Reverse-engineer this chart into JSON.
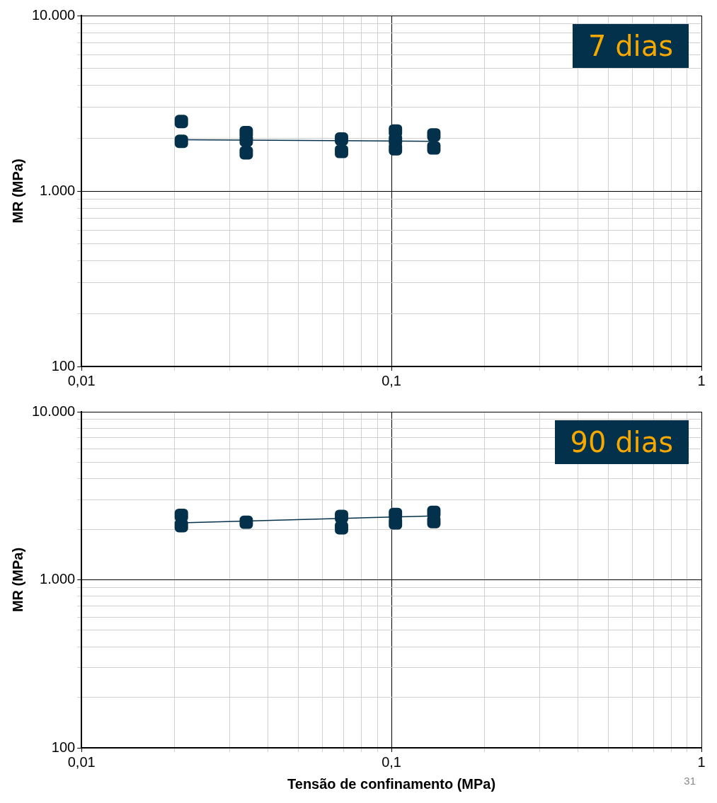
{
  "chart_data": [
    {
      "type": "scatter",
      "ylabel": "MR (MPa)",
      "log": "xy",
      "grid": true,
      "legend": false,
      "marker": "square",
      "xlim": [
        0.01,
        1
      ],
      "ylim": [
        100,
        10000
      ],
      "xticks": [
        {
          "value": 0.01,
          "label": "0,01"
        },
        {
          "value": 0.02,
          "label": null
        },
        {
          "value": 0.03,
          "label": null
        },
        {
          "value": 0.04,
          "label": null
        },
        {
          "value": 0.05,
          "label": null
        },
        {
          "value": 0.06,
          "label": null
        },
        {
          "value": 0.07,
          "label": null
        },
        {
          "value": 0.08,
          "label": null
        },
        {
          "value": 0.09,
          "label": null
        },
        {
          "value": 0.1,
          "label": "0,1"
        },
        {
          "value": 0.2,
          "label": null
        },
        {
          "value": 0.3,
          "label": null
        },
        {
          "value": 0.4,
          "label": null
        },
        {
          "value": 0.5,
          "label": null
        },
        {
          "value": 0.6,
          "label": null
        },
        {
          "value": 0.7,
          "label": null
        },
        {
          "value": 0.8,
          "label": null
        },
        {
          "value": 0.9,
          "label": null
        },
        1
      ],
      "yticks": [
        100,
        {
          "value": 200,
          "label": null
        },
        {
          "value": 300,
          "label": null
        },
        {
          "value": 400,
          "label": null
        },
        {
          "value": 500,
          "label": null
        },
        {
          "value": 600,
          "label": null
        },
        {
          "value": 700,
          "label": null
        },
        {
          "value": 800,
          "label": null
        },
        {
          "value": 900,
          "label": null
        },
        {
          "value": 1000,
          "label": "1.000"
        },
        {
          "value": 2000,
          "label": null
        },
        {
          "value": 3000,
          "label": null
        },
        {
          "value": 4000,
          "label": null
        },
        {
          "value": 5000,
          "label": null
        },
        {
          "value": 6000,
          "label": null
        },
        {
          "value": 7000,
          "label": null
        },
        {
          "value": 8000,
          "label": null
        },
        {
          "value": 9000,
          "label": null
        },
        {
          "value": 10000,
          "label": "10.000"
        }
      ],
      "series": [
        {
          "type": "scatter",
          "color": "#03304a",
          "x": [
            0.021,
            0.021,
            0.034,
            0.034,
            0.034,
            0.069,
            0.069,
            0.103,
            0.103,
            0.103,
            0.137,
            0.137
          ],
          "values": [
            2490,
            1920,
            2150,
            1950,
            1650,
            1980,
            1680,
            2200,
            1950,
            1740,
            2090,
            1760
          ]
        },
        {
          "type": "line",
          "marker": "none",
          "color": "#03304a",
          "x": [
            0.021,
            0.137
          ],
          "values": [
            1960,
            1920
          ]
        }
      ],
      "annotations": [
        "7 dias"
      ]
    },
    {
      "type": "scatter",
      "xlabel": "Tensão de confinamento (MPa)",
      "ylabel": "MR (MPa)",
      "log": "xy",
      "grid": true,
      "legend": false,
      "marker": "square",
      "xlim": [
        0.01,
        1
      ],
      "ylim": [
        100,
        10000
      ],
      "xticks": [
        {
          "value": 0.01,
          "label": "0,01"
        },
        {
          "value": 0.02,
          "label": null
        },
        {
          "value": 0.03,
          "label": null
        },
        {
          "value": 0.04,
          "label": null
        },
        {
          "value": 0.05,
          "label": null
        },
        {
          "value": 0.06,
          "label": null
        },
        {
          "value": 0.07,
          "label": null
        },
        {
          "value": 0.08,
          "label": null
        },
        {
          "value": 0.09,
          "label": null
        },
        {
          "value": 0.1,
          "label": "0,1"
        },
        {
          "value": 0.2,
          "label": null
        },
        {
          "value": 0.3,
          "label": null
        },
        {
          "value": 0.4,
          "label": null
        },
        {
          "value": 0.5,
          "label": null
        },
        {
          "value": 0.6,
          "label": null
        },
        {
          "value": 0.7,
          "label": null
        },
        {
          "value": 0.8,
          "label": null
        },
        {
          "value": 0.9,
          "label": null
        },
        1
      ],
      "yticks": [
        100,
        {
          "value": 200,
          "label": null
        },
        {
          "value": 300,
          "label": null
        },
        {
          "value": 400,
          "label": null
        },
        {
          "value": 500,
          "label": null
        },
        {
          "value": 600,
          "label": null
        },
        {
          "value": 700,
          "label": null
        },
        {
          "value": 800,
          "label": null
        },
        {
          "value": 900,
          "label": null
        },
        {
          "value": 1000,
          "label": "1.000"
        },
        {
          "value": 2000,
          "label": null
        },
        {
          "value": 3000,
          "label": null
        },
        {
          "value": 4000,
          "label": null
        },
        {
          "value": 5000,
          "label": null
        },
        {
          "value": 6000,
          "label": null
        },
        {
          "value": 7000,
          "label": null
        },
        {
          "value": 8000,
          "label": null
        },
        {
          "value": 9000,
          "label": null
        },
        {
          "value": 10000,
          "label": "10.000"
        }
      ],
      "series": [
        {
          "type": "scatter",
          "color": "#03304a",
          "x": [
            0.021,
            0.021,
            0.034,
            0.069,
            0.069,
            0.103,
            0.103,
            0.137,
            0.137
          ],
          "values": [
            2420,
            2100,
            2200,
            2380,
            2040,
            2450,
            2180,
            2520,
            2220
          ]
        },
        {
          "type": "line",
          "marker": "none",
          "color": "#03304a",
          "x": [
            0.021,
            0.137
          ],
          "values": [
            2180,
            2400
          ]
        }
      ],
      "annotations": [
        "90 dias",
        "31"
      ]
    }
  ]
}
